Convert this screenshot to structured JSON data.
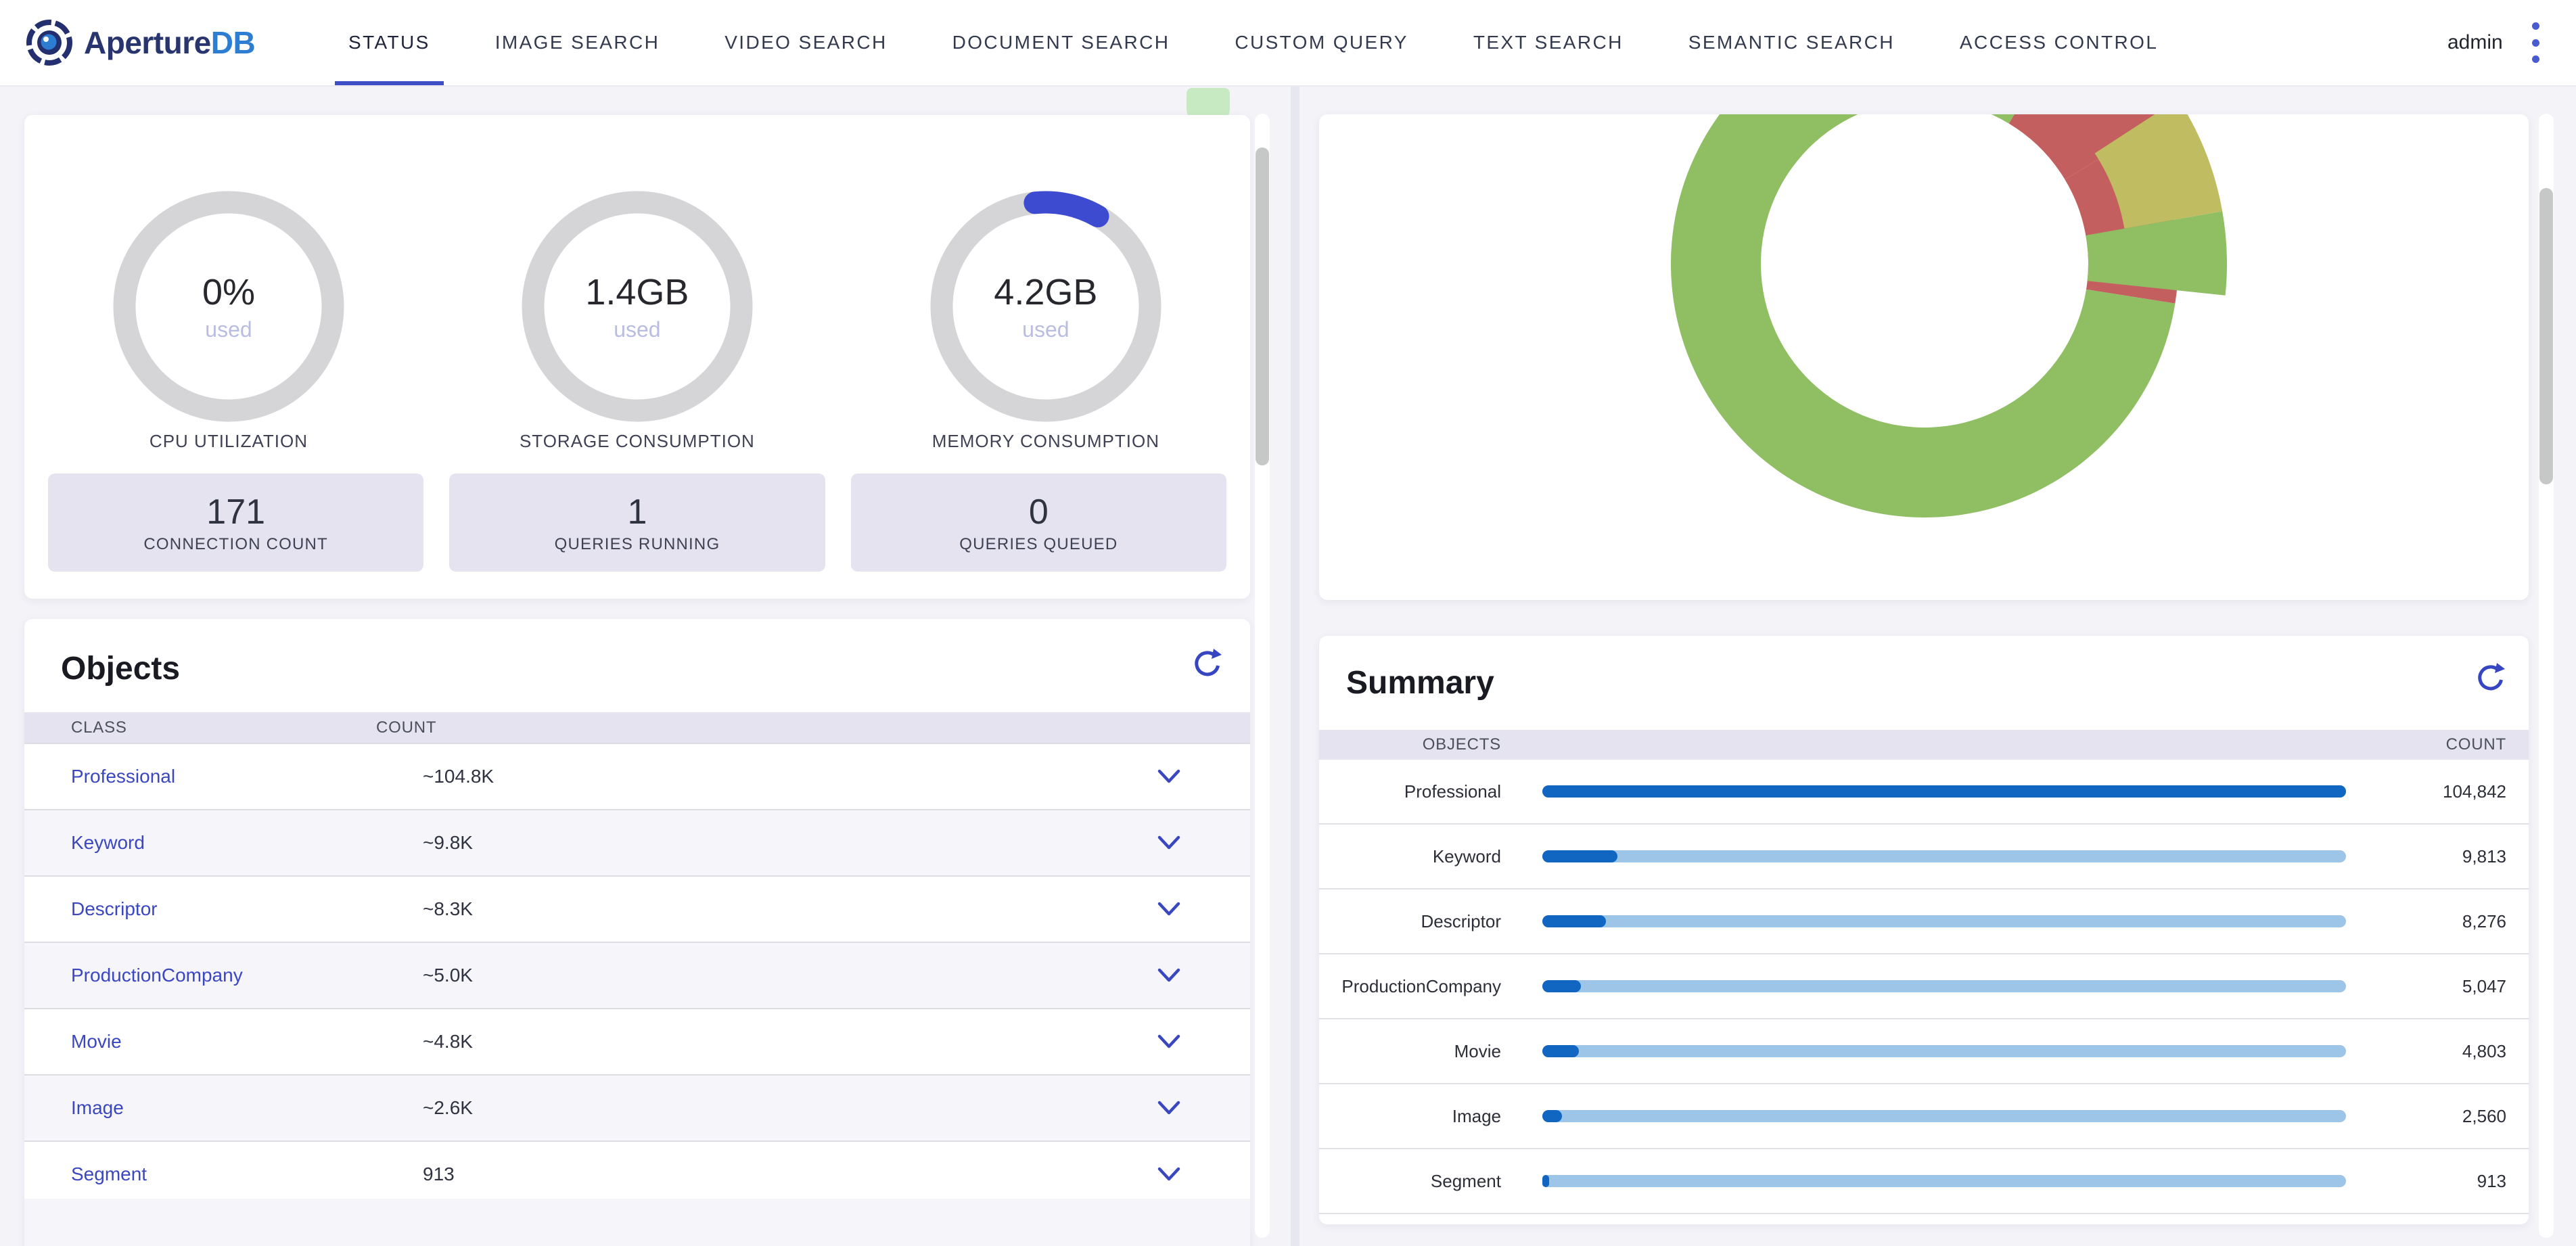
{
  "nav": {
    "brand_primary": "Aperture",
    "brand_secondary": "DB",
    "tabs": [
      {
        "label": "STATUS",
        "active": true
      },
      {
        "label": "IMAGE SEARCH",
        "active": false
      },
      {
        "label": "VIDEO SEARCH",
        "active": false
      },
      {
        "label": "DOCUMENT SEARCH",
        "active": false
      },
      {
        "label": "CUSTOM QUERY",
        "active": false
      },
      {
        "label": "TEXT SEARCH",
        "active": false
      },
      {
        "label": "SEMANTIC SEARCH",
        "active": false
      },
      {
        "label": "ACCESS CONTROL",
        "active": false
      }
    ],
    "user": "admin",
    "accent_color": "#3d4ec6"
  },
  "status_chip": {
    "color": "#c8eac3"
  },
  "metrics": {
    "gauges": [
      {
        "value": "0%",
        "sub": "used",
        "caption": "CPU UTILIZATION",
        "arc_start_deg": 0,
        "arc_end_deg": 0
      },
      {
        "value": "1.4GB",
        "sub": "used",
        "caption": "STORAGE CONSUMPTION",
        "arc_start_deg": 0,
        "arc_end_deg": 0
      },
      {
        "value": "4.2GB",
        "sub": "used",
        "caption": "MEMORY CONSUMPTION",
        "arc_start_deg": -6,
        "arc_end_deg": 30
      }
    ],
    "ring_color": "#d5d5d8",
    "arc_color": "#3d4bd1",
    "stats": [
      {
        "value": "171",
        "label": "CONNECTION COUNT"
      },
      {
        "value": "1",
        "label": "QUERIES RUNNING"
      },
      {
        "value": "0",
        "label": "QUERIES QUEUED"
      }
    ]
  },
  "objects_panel": {
    "title": "Objects",
    "columns": [
      "CLASS",
      "COUNT"
    ],
    "link_color": "#3a47c0",
    "rows": [
      {
        "class": "Professional",
        "count": "~104.8K"
      },
      {
        "class": "Keyword",
        "count": "~9.8K"
      },
      {
        "class": "Descriptor",
        "count": "~8.3K"
      },
      {
        "class": "ProductionCompany",
        "count": "~5.0K"
      },
      {
        "class": "Movie",
        "count": "~4.8K"
      },
      {
        "class": "Image",
        "count": "~2.6K"
      },
      {
        "class": "Segment",
        "count": "913"
      }
    ]
  },
  "summary_panel": {
    "title": "Summary",
    "columns": [
      "OBJECTS",
      "COUNT"
    ],
    "bar_fill_color": "#1166c1",
    "bar_track_color": "#9dc5e8"
  },
  "chart_data": [
    {
      "type": "pie",
      "title": "Objects distribution donut (top portion scrolled out of view)",
      "categories": [
        "Professional",
        "Keyword",
        "Descriptor",
        "ProductionCompany",
        "Movie",
        "Image",
        "Segment"
      ],
      "values": [
        104842,
        9813,
        8276,
        5047,
        4803,
        2560,
        913
      ],
      "legend_position": "none",
      "slices": [
        {
          "name": "keyword-slice-outer",
          "color": "#c45f60",
          "start_deg": 31,
          "end_deg": 59,
          "r_inner": 242,
          "r_outer": 437
        },
        {
          "name": "keyword-slice-band",
          "color": "#c45f60",
          "start_deg": 59,
          "end_deg": 99,
          "r_inner": 242,
          "r_outer": 375
        },
        {
          "name": "descriptor-slice",
          "color": "#c0bc62",
          "start_deg": 57,
          "end_deg": 80,
          "r_inner": 300,
          "r_outer": 447
        },
        {
          "name": "outer-green-slice",
          "color": "#8fbe63",
          "start_deg": 80,
          "end_deg": 96,
          "r_inner": 242,
          "r_outer": 447
        },
        {
          "name": "professional-slice",
          "color": "#8fbe63",
          "start_deg": 99,
          "end_deg": 391,
          "r_inner": 242,
          "r_outer": 375
        }
      ]
    },
    {
      "type": "bar",
      "orientation": "horizontal",
      "title": "Summary",
      "categories": [
        "Professional",
        "Keyword",
        "Descriptor",
        "ProductionCompany",
        "Movie",
        "Image",
        "Segment"
      ],
      "values": [
        104842,
        9813,
        8276,
        5047,
        4803,
        2560,
        913
      ],
      "display_values": [
        "104,842",
        "9,813",
        "8,276",
        "5,047",
        "4,803",
        "2,560",
        "913"
      ],
      "xlim": [
        0,
        104842
      ],
      "grid": false
    }
  ]
}
